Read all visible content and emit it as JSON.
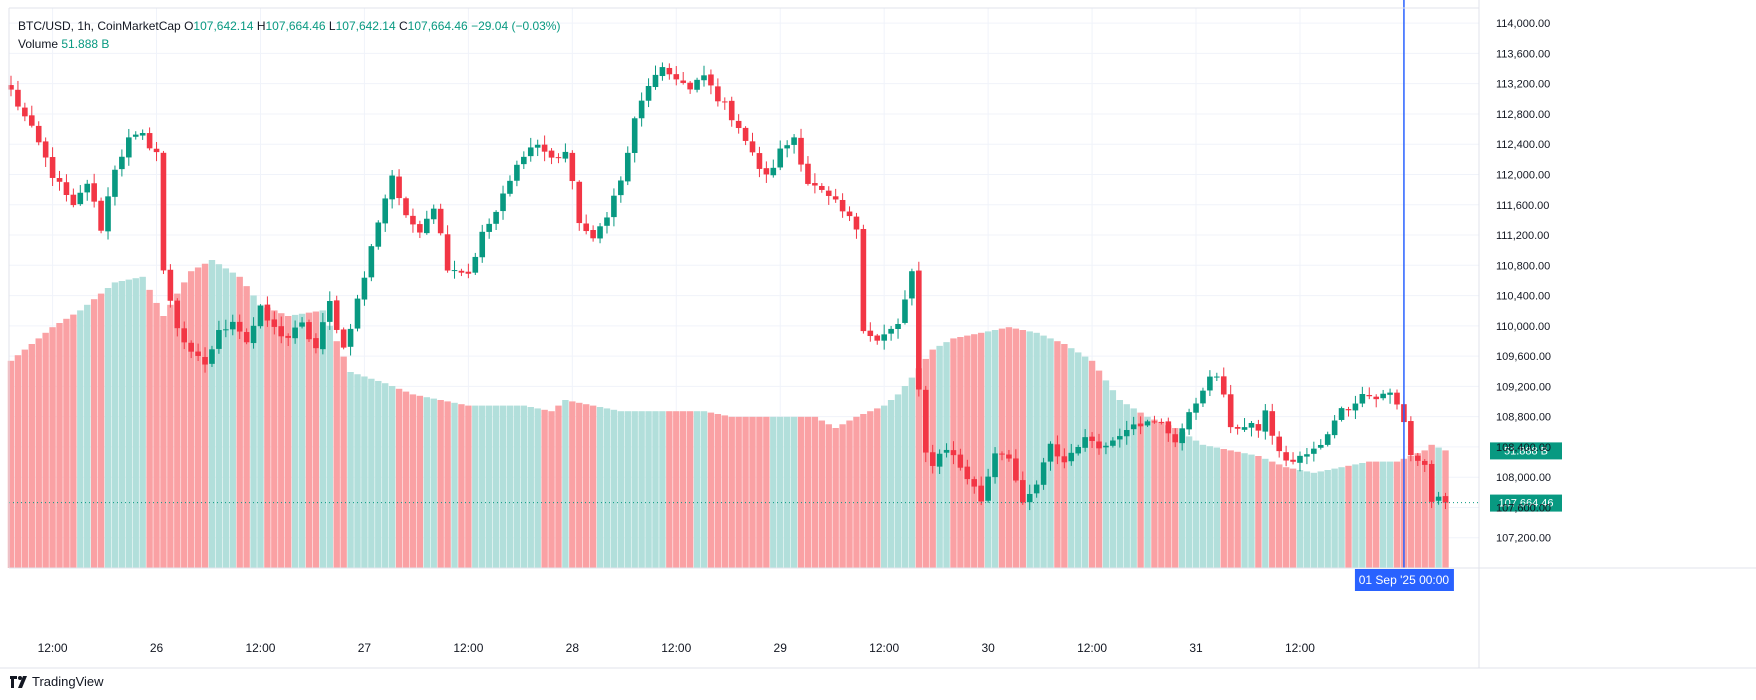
{
  "header": {
    "symbol_line": "BTC/USD, 1h, CoinMarketCap",
    "o_label": "O",
    "o_value": "107,642.14",
    "h_label": "H",
    "h_value": "107,664.46",
    "l_label": "L",
    "l_value": "107,642.14",
    "c_label": "C",
    "c_value": "107,664.46",
    "change": "−29.04 (−0.03%)",
    "volume_label": "Volume",
    "volume_value": "51.888 B"
  },
  "branding": {
    "name": "TradingView"
  },
  "colors": {
    "up": "#089981",
    "down": "#f23645",
    "up_vol": "#b2dfdb",
    "down_vol": "#faa1a4",
    "crosshair": "#2962ff",
    "text": "#131722"
  },
  "chart_data": {
    "type": "candlestick",
    "title": "BTC/USD, 1h, CoinMarketCap",
    "ylim": [
      106800,
      114200
    ],
    "y_ticks": [
      107200,
      107600,
      108000,
      108400,
      108800,
      109200,
      109600,
      110000,
      110400,
      110800,
      111200,
      111600,
      112000,
      112400,
      112800,
      113200,
      113600,
      114000
    ],
    "y_tick_labels": [
      "107,200.00",
      "107,600.00",
      "108,000.00",
      "108,400.00",
      "108,800.00",
      "109,200.00",
      "109,600.00",
      "110,000.00",
      "110,400.00",
      "110,800.00",
      "111,200.00",
      "111,600.00",
      "112,000.00",
      "112,400.00",
      "112,800.00",
      "113,200.00",
      "113,600.00",
      "114,000.00"
    ],
    "x_ticks": [
      {
        "i": 6,
        "label": "12:00"
      },
      {
        "i": 21,
        "label": "26"
      },
      {
        "i": 36,
        "label": "12:00"
      },
      {
        "i": 51,
        "label": "27"
      },
      {
        "i": 66,
        "label": "12:00"
      },
      {
        "i": 81,
        "label": "28"
      },
      {
        "i": 96,
        "label": "12:00"
      },
      {
        "i": 111,
        "label": "29"
      },
      {
        "i": 126,
        "label": "12:00"
      },
      {
        "i": 141,
        "label": "30"
      },
      {
        "i": 156,
        "label": "12:00"
      },
      {
        "i": 171,
        "label": "31"
      },
      {
        "i": 186,
        "label": "12:00"
      }
    ],
    "crosshair": {
      "i": 201,
      "label": "01 Sep '25   00:00"
    },
    "last_volume_label": "51.888 B",
    "last_price_label": "107,664.46",
    "last_price": 107664.46,
    "anchors": [
      [
        0,
        113100
      ],
      [
        2,
        112750
      ],
      [
        4,
        112400
      ],
      [
        6,
        112000
      ],
      [
        9,
        111550
      ],
      [
        11,
        111900
      ],
      [
        13,
        111300
      ],
      [
        15,
        112100
      ],
      [
        17,
        112450
      ],
      [
        19,
        112500
      ],
      [
        21,
        112300
      ],
      [
        22,
        110700
      ],
      [
        24,
        110000
      ],
      [
        26,
        109600
      ],
      [
        28,
        109500
      ],
      [
        30,
        109900
      ],
      [
        32,
        110100
      ],
      [
        34,
        109800
      ],
      [
        36,
        110200
      ],
      [
        38,
        109950
      ],
      [
        40,
        109850
      ],
      [
        42,
        110000
      ],
      [
        44,
        109700
      ],
      [
        46,
        110300
      ],
      [
        48,
        109700
      ],
      [
        51,
        110650
      ],
      [
        53,
        111400
      ],
      [
        55,
        112000
      ],
      [
        57,
        111400
      ],
      [
        59,
        111300
      ],
      [
        61,
        111600
      ],
      [
        63,
        110800
      ],
      [
        66,
        110700
      ],
      [
        68,
        111200
      ],
      [
        70,
        111500
      ],
      [
        72,
        111900
      ],
      [
        74,
        112300
      ],
      [
        76,
        112400
      ],
      [
        78,
        112200
      ],
      [
        80,
        112300
      ],
      [
        82,
        111400
      ],
      [
        84,
        111100
      ],
      [
        86,
        111500
      ],
      [
        88,
        111900
      ],
      [
        90,
        112700
      ],
      [
        92,
        113200
      ],
      [
        94,
        113350
      ],
      [
        96,
        113300
      ],
      [
        98,
        113100
      ],
      [
        100,
        113300
      ],
      [
        101,
        113150
      ],
      [
        103,
        112900
      ],
      [
        105,
        112650
      ],
      [
        107,
        112250
      ],
      [
        109,
        111950
      ],
      [
        111,
        112300
      ],
      [
        113,
        112500
      ],
      [
        115,
        111900
      ],
      [
        117,
        111750
      ],
      [
        119,
        111600
      ],
      [
        122,
        111300
      ],
      [
        123,
        110000
      ],
      [
        125,
        109800
      ],
      [
        128,
        110000
      ],
      [
        130,
        110700
      ],
      [
        131,
        109100
      ],
      [
        132,
        108300
      ],
      [
        133,
        108200
      ],
      [
        135,
        108400
      ],
      [
        138,
        108000
      ],
      [
        140,
        107700
      ],
      [
        142,
        108350
      ],
      [
        144,
        108300
      ],
      [
        146,
        107600
      ],
      [
        148,
        107900
      ],
      [
        150,
        108400
      ],
      [
        152,
        108200
      ],
      [
        154,
        108450
      ],
      [
        156,
        108500
      ],
      [
        158,
        108400
      ],
      [
        160,
        108600
      ],
      [
        162,
        108750
      ],
      [
        164,
        108700
      ],
      [
        166,
        108700
      ],
      [
        168,
        108500
      ],
      [
        170,
        108800
      ],
      [
        172,
        109200
      ],
      [
        174,
        109350
      ],
      [
        176,
        108700
      ],
      [
        178,
        108650
      ],
      [
        180,
        108650
      ],
      [
        181,
        108850
      ],
      [
        183,
        108300
      ],
      [
        185,
        108200
      ],
      [
        187,
        108300
      ],
      [
        189,
        108400
      ],
      [
        191,
        108800
      ],
      [
        193,
        108950
      ],
      [
        195,
        109100
      ],
      [
        197,
        109050
      ],
      [
        199,
        109100
      ],
      [
        200,
        108950
      ],
      [
        201,
        108750
      ],
      [
        202,
        108300
      ],
      [
        204,
        108150
      ],
      [
        205,
        107700
      ],
      [
        207,
        107664
      ]
    ],
    "volume_anchors": [
      [
        0,
        0.37
      ],
      [
        6,
        0.43
      ],
      [
        10,
        0.46
      ],
      [
        15,
        0.51
      ],
      [
        19,
        0.52
      ],
      [
        22,
        0.45
      ],
      [
        26,
        0.53
      ],
      [
        29,
        0.55
      ],
      [
        33,
        0.52
      ],
      [
        36,
        0.47
      ],
      [
        40,
        0.45
      ],
      [
        45,
        0.46
      ],
      [
        49,
        0.35
      ],
      [
        54,
        0.33
      ],
      [
        58,
        0.31
      ],
      [
        62,
        0.3
      ],
      [
        66,
        0.29
      ],
      [
        70,
        0.29
      ],
      [
        74,
        0.29
      ],
      [
        78,
        0.28
      ],
      [
        80,
        0.3
      ],
      [
        84,
        0.29
      ],
      [
        88,
        0.28
      ],
      [
        92,
        0.28
      ],
      [
        96,
        0.28
      ],
      [
        100,
        0.28
      ],
      [
        104,
        0.27
      ],
      [
        108,
        0.27
      ],
      [
        112,
        0.27
      ],
      [
        116,
        0.27
      ],
      [
        119,
        0.25
      ],
      [
        122,
        0.27
      ],
      [
        126,
        0.29
      ],
      [
        128,
        0.31
      ],
      [
        130,
        0.34
      ],
      [
        133,
        0.39
      ],
      [
        136,
        0.41
      ],
      [
        140,
        0.42
      ],
      [
        144,
        0.43
      ],
      [
        148,
        0.42
      ],
      [
        152,
        0.4
      ],
      [
        156,
        0.37
      ],
      [
        160,
        0.3
      ],
      [
        164,
        0.27
      ],
      [
        168,
        0.25
      ],
      [
        172,
        0.22
      ],
      [
        176,
        0.21
      ],
      [
        180,
        0.2
      ],
      [
        184,
        0.18
      ],
      [
        188,
        0.17
      ],
      [
        192,
        0.18
      ],
      [
        196,
        0.19
      ],
      [
        200,
        0.19
      ],
      [
        204,
        0.21
      ],
      [
        205,
        0.22
      ],
      [
        207,
        0.21
      ]
    ],
    "volume_last_flag": 0.21
  }
}
